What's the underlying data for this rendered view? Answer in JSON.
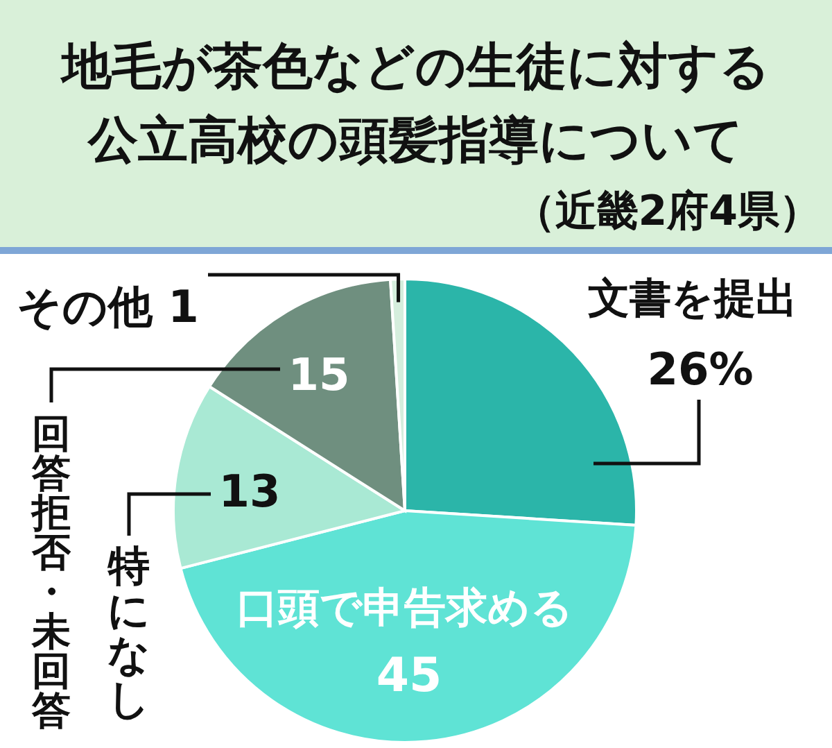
{
  "chart_data": {
    "type": "pie",
    "title": "地毛が茶色などの生徒に対する公立高校の頭髪指導について",
    "subtitle": "（近畿2府4県）",
    "categories": [
      "文書を提出",
      "口頭で申告求める",
      "特になし",
      "回答拒否・未回答",
      "その他"
    ],
    "values": [
      26,
      45,
      13,
      15,
      1
    ],
    "value_labels": [
      "26%",
      "45",
      "13",
      "15",
      "1"
    ],
    "colors": [
      "#2bb5a9",
      "#5fe3d5",
      "#a9e9d4",
      "#6f8f7f",
      "#d5eedd"
    ],
    "legend": false
  }
}
